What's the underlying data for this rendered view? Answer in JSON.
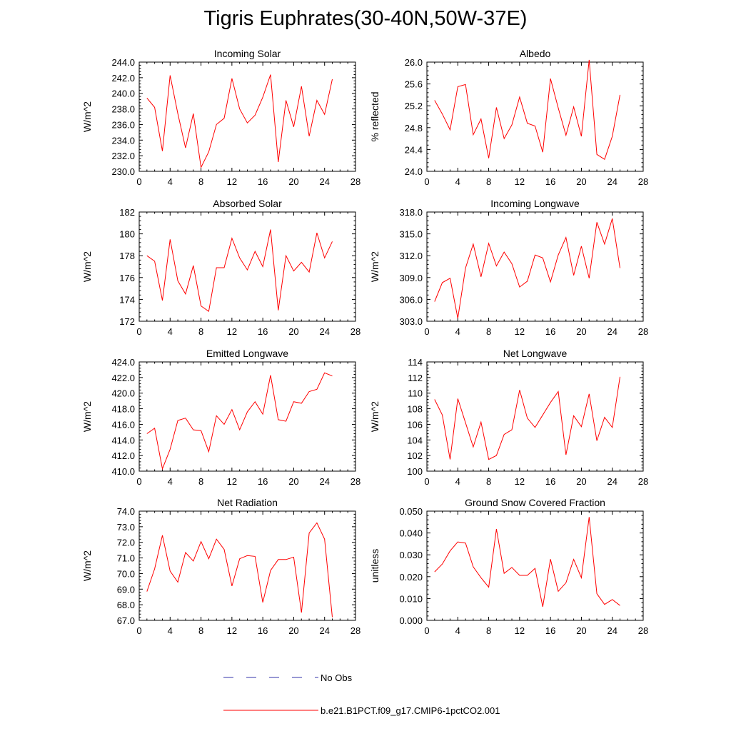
{
  "figure_title": "Tigris Euphrates(30-40N,50W-37E)",
  "colors": {
    "model": "#ff0000",
    "obs": "#3333aa",
    "axis": "#000000"
  },
  "legend": [
    {
      "label": "No Obs",
      "style": "dashed",
      "color": "#3333aa"
    },
    {
      "label": "b.e21.B1PCT.f09_g17.CMIP6-1pctCO2.001",
      "style": "solid",
      "color": "#ff0000"
    }
  ],
  "chart_data": [
    {
      "type": "line",
      "title": "Incoming Solar",
      "ylabel": "W/m^2",
      "xlim": [
        0,
        28
      ],
      "ylim": [
        230.0,
        244.0
      ],
      "xticks": [
        0,
        4,
        8,
        12,
        16,
        20,
        24,
        28
      ],
      "yticks": [
        "230.0",
        "232.0",
        "234.0",
        "236.0",
        "238.0",
        "240.0",
        "242.0",
        "244.0"
      ],
      "x": [
        1,
        2,
        3,
        4,
        5,
        6,
        7,
        8,
        9,
        10,
        11,
        12,
        13,
        14,
        15,
        16,
        17,
        18,
        19,
        20,
        21,
        22,
        23,
        24,
        25
      ],
      "series": [
        {
          "name": "b.e21.B1PCT.f09_g17.CMIP6-1pctCO2.001",
          "values": [
            239.4,
            238.2,
            232.6,
            242.3,
            237.4,
            233.0,
            237.4,
            230.5,
            232.5,
            236.0,
            236.8,
            241.9,
            238.0,
            236.2,
            237.2,
            239.5,
            242.4,
            231.2,
            239.1,
            235.7,
            240.9,
            234.5,
            239.1,
            237.3,
            241.8
          ]
        }
      ]
    },
    {
      "type": "line",
      "title": "Albedo",
      "ylabel": "% reflected",
      "xlim": [
        0,
        28
      ],
      "ylim": [
        24.0,
        26.0
      ],
      "xticks": [
        0,
        4,
        8,
        12,
        16,
        20,
        24,
        28
      ],
      "yticks": [
        "24.0",
        "24.4",
        "24.8",
        "25.2",
        "25.6",
        "26.0"
      ],
      "x": [
        1,
        2,
        3,
        4,
        5,
        6,
        7,
        8,
        9,
        10,
        11,
        12,
        13,
        14,
        15,
        16,
        17,
        18,
        19,
        20,
        21,
        22,
        23,
        24,
        25
      ],
      "series": [
        {
          "name": "b.e21.B1PCT.f09_g17.CMIP6-1pctCO2.001",
          "values": [
            25.3,
            25.05,
            24.76,
            25.55,
            25.59,
            24.67,
            24.96,
            24.24,
            25.17,
            24.6,
            24.85,
            25.36,
            24.88,
            24.83,
            24.35,
            25.7,
            25.16,
            24.66,
            25.18,
            24.64,
            26.04,
            24.31,
            24.22,
            24.64,
            25.4
          ]
        }
      ]
    },
    {
      "type": "line",
      "title": "Absorbed Solar",
      "ylabel": "W/m^2",
      "xlim": [
        0,
        28
      ],
      "ylim": [
        172,
        182
      ],
      "xticks": [
        0,
        4,
        8,
        12,
        16,
        20,
        24,
        28
      ],
      "yticks": [
        "172",
        "174",
        "176",
        "178",
        "180",
        "182"
      ],
      "x": [
        1,
        2,
        3,
        4,
        5,
        6,
        7,
        8,
        9,
        10,
        11,
        12,
        13,
        14,
        15,
        16,
        17,
        18,
        19,
        20,
        21,
        22,
        23,
        24,
        25
      ],
      "series": [
        {
          "name": "b.e21.B1PCT.f09_g17.CMIP6-1pctCO2.001",
          "values": [
            178.0,
            177.5,
            173.9,
            179.5,
            175.7,
            174.5,
            177.1,
            173.4,
            172.9,
            176.9,
            176.9,
            179.6,
            177.8,
            176.7,
            178.4,
            177.0,
            180.4,
            173.0,
            178.0,
            176.6,
            177.4,
            176.5,
            180.1,
            177.8,
            179.3
          ]
        }
      ]
    },
    {
      "type": "line",
      "title": "Incoming Longwave",
      "ylabel": "W/m^2",
      "xlim": [
        0,
        28
      ],
      "ylim": [
        303.0,
        318.0
      ],
      "xticks": [
        0,
        4,
        8,
        12,
        16,
        20,
        24,
        28
      ],
      "yticks": [
        "303.0",
        "306.0",
        "309.0",
        "312.0",
        "315.0",
        "318.0"
      ],
      "x": [
        1,
        2,
        3,
        4,
        5,
        6,
        7,
        8,
        9,
        10,
        11,
        12,
        13,
        14,
        15,
        16,
        17,
        18,
        19,
        20,
        21,
        22,
        23,
        24,
        25
      ],
      "series": [
        {
          "name": "b.e21.B1PCT.f09_g17.CMIP6-1pctCO2.001",
          "values": [
            305.7,
            308.3,
            308.9,
            303.4,
            310.3,
            313.6,
            309.1,
            313.7,
            310.6,
            312.5,
            310.9,
            307.7,
            308.5,
            312.1,
            311.7,
            308.4,
            312.1,
            314.5,
            309.3,
            313.3,
            308.9,
            316.6,
            313.6,
            317.1,
            310.3
          ]
        }
      ]
    },
    {
      "type": "line",
      "title": "Emitted Longwave",
      "ylabel": "W/m^2",
      "xlim": [
        0,
        28
      ],
      "ylim": [
        410.0,
        424.0
      ],
      "xticks": [
        0,
        4,
        8,
        12,
        16,
        20,
        24,
        28
      ],
      "yticks": [
        "410.0",
        "412.0",
        "414.0",
        "416.0",
        "418.0",
        "420.0",
        "422.0",
        "424.0"
      ],
      "x": [
        1,
        2,
        3,
        4,
        5,
        6,
        7,
        8,
        9,
        10,
        11,
        12,
        13,
        14,
        15,
        16,
        17,
        18,
        19,
        20,
        21,
        22,
        23,
        24,
        25
      ],
      "series": [
        {
          "name": "b.e21.B1PCT.f09_g17.CMIP6-1pctCO2.001",
          "values": [
            414.8,
            415.5,
            410.3,
            412.8,
            416.5,
            416.8,
            415.3,
            415.2,
            412.5,
            417.1,
            416.0,
            417.9,
            415.3,
            417.6,
            418.9,
            417.3,
            422.3,
            416.6,
            416.4,
            418.9,
            418.7,
            420.2,
            420.5,
            422.6,
            422.2
          ]
        }
      ]
    },
    {
      "type": "line",
      "title": "Net Longwave",
      "ylabel": "W/m^2",
      "xlim": [
        0,
        28
      ],
      "ylim": [
        100,
        114
      ],
      "xticks": [
        0,
        4,
        8,
        12,
        16,
        20,
        24,
        28
      ],
      "yticks": [
        "100",
        "102",
        "104",
        "106",
        "108",
        "110",
        "112",
        "114"
      ],
      "x": [
        1,
        2,
        3,
        4,
        5,
        6,
        7,
        8,
        9,
        10,
        11,
        12,
        13,
        14,
        15,
        16,
        17,
        18,
        19,
        20,
        21,
        22,
        23,
        24,
        25
      ],
      "series": [
        {
          "name": "b.e21.B1PCT.f09_g17.CMIP6-1pctCO2.001",
          "values": [
            109.2,
            107.2,
            101.5,
            109.3,
            106.2,
            103.1,
            106.3,
            101.5,
            102.0,
            104.7,
            105.3,
            110.4,
            106.8,
            105.6,
            107.2,
            108.8,
            110.2,
            102.1,
            107.1,
            105.7,
            109.9,
            103.9,
            106.9,
            105.6,
            112.1
          ]
        }
      ]
    },
    {
      "type": "line",
      "title": "Net Radiation",
      "ylabel": "W/m^2",
      "xlim": [
        0,
        28
      ],
      "ylim": [
        67.0,
        74.0
      ],
      "xticks": [
        0,
        4,
        8,
        12,
        16,
        20,
        24,
        28
      ],
      "yticks": [
        "67.0",
        "68.0",
        "69.0",
        "70.0",
        "71.0",
        "72.0",
        "73.0",
        "74.0"
      ],
      "x": [
        1,
        2,
        3,
        4,
        5,
        6,
        7,
        8,
        9,
        10,
        11,
        12,
        13,
        14,
        15,
        16,
        17,
        18,
        19,
        20,
        21,
        22,
        23,
        24,
        25
      ],
      "series": [
        {
          "name": "b.e21.B1PCT.f09_g17.CMIP6-1pctCO2.001",
          "values": [
            68.85,
            70.3,
            72.45,
            70.15,
            69.45,
            71.35,
            70.8,
            72.05,
            70.95,
            72.2,
            71.55,
            69.2,
            70.95,
            71.15,
            71.1,
            68.15,
            70.2,
            70.9,
            70.9,
            71.05,
            67.5,
            72.6,
            73.25,
            72.2,
            67.2
          ]
        }
      ]
    },
    {
      "type": "line",
      "title": "Ground Snow Covered Fraction",
      "ylabel": "unitless",
      "xlim": [
        0,
        28
      ],
      "ylim": [
        0.0,
        0.05
      ],
      "xticks": [
        0,
        4,
        8,
        12,
        16,
        20,
        24,
        28
      ],
      "yticks": [
        "0.000",
        "0.010",
        "0.020",
        "0.030",
        "0.040",
        "0.050"
      ],
      "x": [
        1,
        2,
        3,
        4,
        5,
        6,
        7,
        8,
        9,
        10,
        11,
        12,
        13,
        14,
        15,
        16,
        17,
        18,
        19,
        20,
        21,
        22,
        23,
        24,
        25
      ],
      "series": [
        {
          "name": "b.e21.B1PCT.f09_g17.CMIP6-1pctCO2.001",
          "values": [
            0.0222,
            0.0258,
            0.0318,
            0.0359,
            0.0354,
            0.0245,
            0.0195,
            0.0152,
            0.0418,
            0.0215,
            0.0242,
            0.0206,
            0.0206,
            0.0238,
            0.0062,
            0.028,
            0.0133,
            0.0172,
            0.0279,
            0.0195,
            0.0473,
            0.0122,
            0.0073,
            0.0095,
            0.0068
          ]
        }
      ]
    }
  ]
}
